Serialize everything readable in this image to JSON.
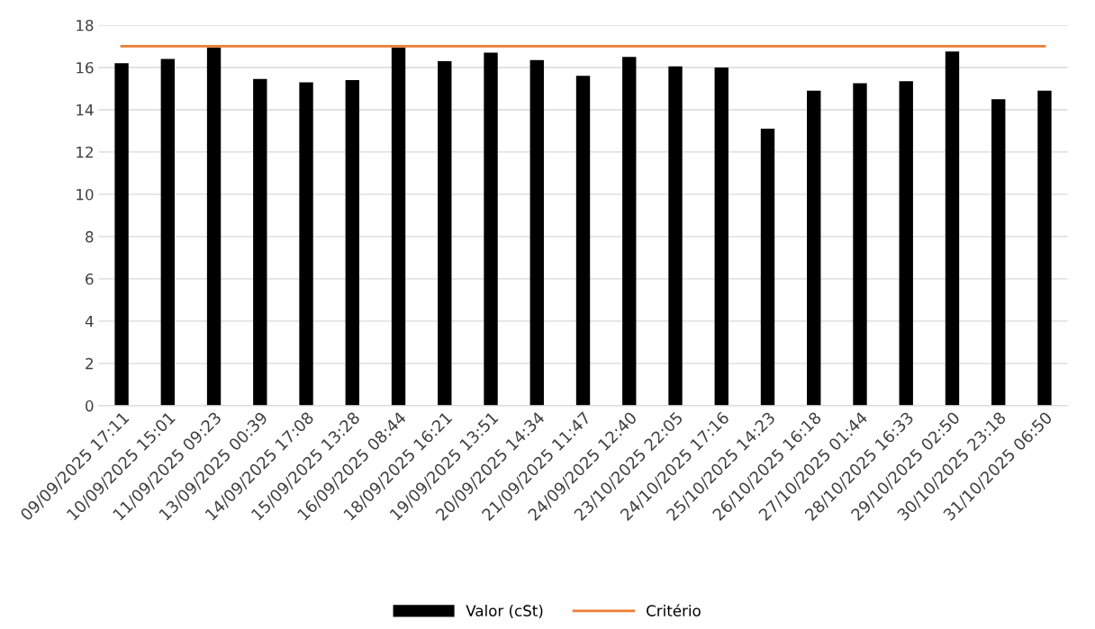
{
  "chart_data": {
    "type": "bar",
    "categories": [
      "09/09/2025 17:11",
      "10/09/2025 15:01",
      "11/09/2025 09:23",
      "13/09/2025 00:39",
      "14/09/2025 17:08",
      "15/09/2025 13:28",
      "16/09/2025 08:44",
      "18/09/2025 16:21",
      "19/09/2025 13:51",
      "20/09/2025 14:34",
      "21/09/2025 11:47",
      "24/09/2025 12:40",
      "23/10/2025 22:05",
      "24/10/2025 17:16",
      "25/10/2025 14:23",
      "26/10/2025 16:18",
      "27/10/2025 01:44",
      "28/10/2025 16:33",
      "29/10/2025 02:50",
      "30/10/2025 23:18",
      "31/10/2025 06:50"
    ],
    "series": [
      {
        "name": "Valor (cSt)",
        "color": "#000000",
        "values": [
          16.2,
          16.4,
          16.95,
          15.45,
          15.3,
          15.4,
          16.95,
          16.3,
          16.7,
          16.35,
          15.6,
          16.5,
          16.05,
          16.0,
          13.1,
          14.9,
          15.25,
          15.35,
          16.75,
          14.5,
          14.9
        ]
      },
      {
        "name": "Critério",
        "type": "line",
        "color": "#ed7d31",
        "values": [
          17,
          17,
          17,
          17,
          17,
          17,
          17,
          17,
          17,
          17,
          17,
          17,
          17,
          17,
          17,
          17,
          17,
          17,
          17,
          17,
          17
        ]
      }
    ],
    "ylim": [
      0,
      18
    ],
    "yticks": [
      0,
      2,
      4,
      6,
      8,
      10,
      12,
      14,
      16,
      18
    ],
    "grid": "y",
    "legend": "bottom",
    "marker": "none",
    "line_style": "solid"
  }
}
